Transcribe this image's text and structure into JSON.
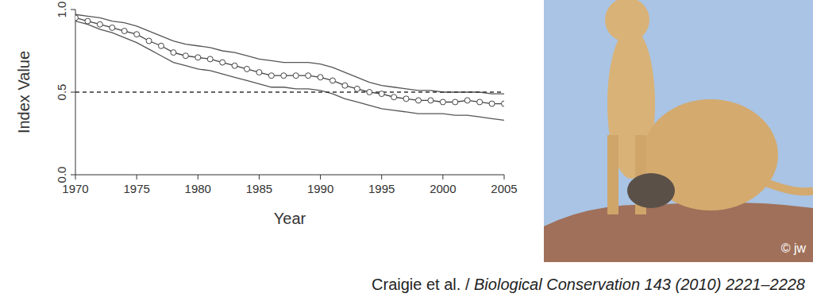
{
  "chart_data": {
    "type": "line",
    "xlabel": "Year",
    "ylabel": "Index Value",
    "x": [
      1970,
      1971,
      1972,
      1973,
      1974,
      1975,
      1976,
      1977,
      1978,
      1979,
      1980,
      1981,
      1982,
      1983,
      1984,
      1985,
      1986,
      1987,
      1988,
      1989,
      1990,
      1991,
      1992,
      1993,
      1994,
      1995,
      1996,
      1997,
      1998,
      1999,
      2000,
      2001,
      2002,
      2003,
      2004,
      2005
    ],
    "series": [
      {
        "color": "#555555",
        "marker": "none",
        "line_style": "solid",
        "values": [
          0.97,
          0.96,
          0.95,
          0.93,
          0.92,
          0.9,
          0.87,
          0.84,
          0.81,
          0.79,
          0.78,
          0.77,
          0.75,
          0.74,
          0.72,
          0.7,
          0.69,
          0.68,
          0.68,
          0.68,
          0.67,
          0.65,
          0.62,
          0.59,
          0.56,
          0.54,
          0.53,
          0.52,
          0.51,
          0.51,
          0.5,
          0.5,
          0.5,
          0.5,
          0.49,
          0.49
        ]
      },
      {
        "color": "#555555",
        "marker": "none",
        "line_style": "solid",
        "values": [
          0.93,
          0.91,
          0.88,
          0.86,
          0.83,
          0.8,
          0.76,
          0.72,
          0.68,
          0.66,
          0.64,
          0.63,
          0.61,
          0.59,
          0.57,
          0.55,
          0.53,
          0.53,
          0.52,
          0.52,
          0.51,
          0.49,
          0.46,
          0.44,
          0.42,
          0.4,
          0.39,
          0.38,
          0.37,
          0.37,
          0.37,
          0.36,
          0.36,
          0.35,
          0.34,
          0.33
        ]
      },
      {
        "color": "#333333",
        "marker": "none",
        "line_style": "dashed",
        "values": [
          0.5,
          0.5,
          0.5,
          0.5,
          0.5,
          0.5,
          0.5,
          0.5,
          0.5,
          0.5,
          0.5,
          0.5,
          0.5,
          0.5,
          0.5,
          0.5,
          0.5,
          0.5,
          0.5,
          0.5,
          0.5,
          0.5,
          0.5,
          0.5,
          0.5,
          0.5,
          0.5,
          0.5,
          0.5,
          0.5,
          0.5,
          0.5,
          0.5,
          0.5,
          0.5,
          0.5
        ]
      },
      {
        "color": "#444444",
        "marker": "circle",
        "line_style": "solid",
        "values": [
          0.95,
          0.93,
          0.91,
          0.89,
          0.87,
          0.85,
          0.81,
          0.78,
          0.74,
          0.72,
          0.71,
          0.7,
          0.68,
          0.66,
          0.64,
          0.62,
          0.6,
          0.6,
          0.6,
          0.6,
          0.59,
          0.57,
          0.54,
          0.52,
          0.5,
          0.49,
          0.47,
          0.46,
          0.45,
          0.45,
          0.44,
          0.44,
          0.45,
          0.44,
          0.43,
          0.43
        ]
      }
    ],
    "xlim": [
      1970,
      2005
    ],
    "xticks": [
      1970,
      1975,
      1980,
      1985,
      1990,
      1995,
      2000,
      2005
    ],
    "ylim": [
      0,
      1
    ],
    "yticks": [
      {
        "value": 0,
        "label": "0.0"
      },
      0.5,
      {
        "value": 1,
        "label": "1.0"
      }
    ],
    "grid": false,
    "legend": "none"
  },
  "citation": {
    "authors": "Craigie et al. / ",
    "journal": "Biological Conservation 143 (2010) 2221–2228"
  },
  "photo": {
    "credit": "© jw"
  }
}
